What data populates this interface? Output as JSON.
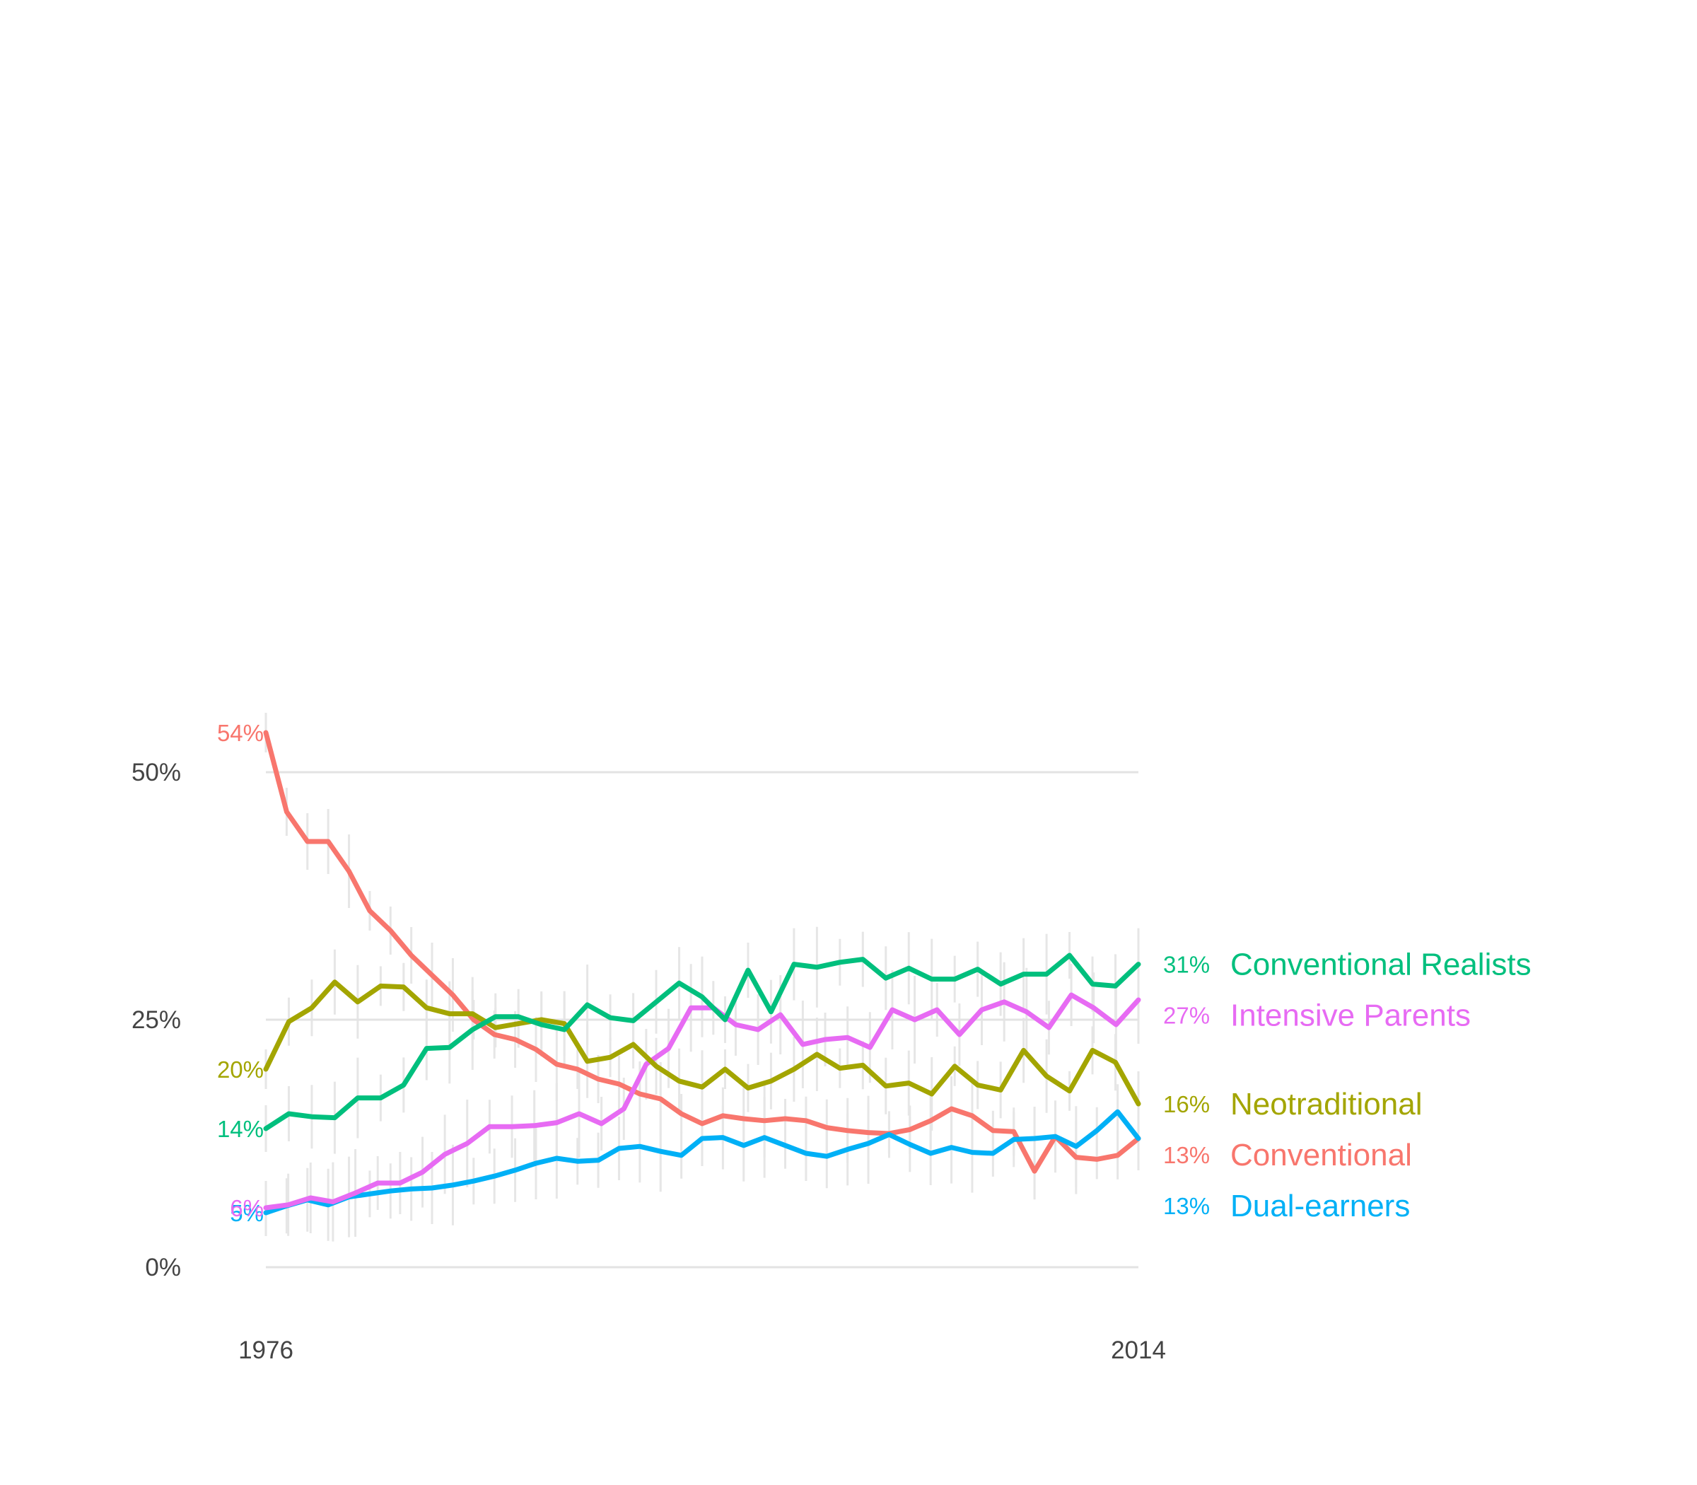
{
  "chart_data": {
    "type": "line",
    "x_range": [
      1976,
      2014
    ],
    "ylim": [
      0,
      0.57
    ],
    "y_ticks": [
      {
        "value": 0,
        "label": "0%"
      },
      {
        "value": 0.25,
        "label": "25%"
      },
      {
        "value": 0.5,
        "label": "50%"
      }
    ],
    "x_tick_labels": [
      "1976",
      "2014"
    ],
    "grid": "horizontal major lines at 0%, 25%, 50%",
    "error_bars": "light gray vertical uncertainty bars at each year",
    "series": [
      {
        "name": "Conventional",
        "color": "#F8766D",
        "start_label": "54%",
        "end_label": "13%",
        "values": [
          0.54,
          0.46,
          0.43,
          0.43,
          0.4,
          0.36,
          0.34,
          0.315,
          0.295,
          0.275,
          0.25,
          0.235,
          0.23,
          0.22,
          0.205,
          0.2,
          0.19,
          0.185,
          0.175,
          0.17,
          0.155,
          0.145,
          0.153,
          0.15,
          0.148,
          0.15,
          0.148,
          0.141,
          0.138,
          0.136,
          0.135,
          0.139,
          0.148,
          0.16,
          0.153,
          0.138,
          0.137,
          0.097,
          0.132,
          0.111,
          0.109,
          0.113,
          0.13
        ]
      },
      {
        "name": "Dual-earners",
        "color": "#00B0F6",
        "start_label": "5%",
        "end_label": "13%",
        "values": [
          0.055,
          0.062,
          0.068,
          0.063,
          0.071,
          0.074,
          0.077,
          0.079,
          0.08,
          0.083,
          0.087,
          0.092,
          0.098,
          0.105,
          0.11,
          0.107,
          0.108,
          0.12,
          0.122,
          0.117,
          0.113,
          0.13,
          0.131,
          0.123,
          0.131,
          0.123,
          0.115,
          0.112,
          0.119,
          0.125,
          0.134,
          0.124,
          0.115,
          0.121,
          0.116,
          0.115,
          0.129,
          0.13,
          0.132,
          0.122,
          0.138,
          0.157,
          0.13
        ]
      },
      {
        "name": "Intensive Parents",
        "color": "#E76BF3",
        "start_label": "6%",
        "end_label": "27%",
        "values": [
          0.06,
          0.063,
          0.07,
          0.066,
          0.075,
          0.085,
          0.085,
          0.096,
          0.114,
          0.125,
          0.142,
          0.142,
          0.143,
          0.146,
          0.155,
          0.145,
          0.16,
          0.205,
          0.221,
          0.262,
          0.262,
          0.245,
          0.24,
          0.255,
          0.225,
          0.23,
          0.232,
          0.222,
          0.26,
          0.25,
          0.26,
          0.235,
          0.26,
          0.268,
          0.258,
          0.242,
          0.275,
          0.262,
          0.245,
          0.27
        ]
      },
      {
        "name": "Neotraditional",
        "color": "#A3A500",
        "start_label": "20%",
        "end_label": "16%",
        "values": [
          0.2,
          0.248,
          0.262,
          0.288,
          0.268,
          0.284,
          0.283,
          0.262,
          0.256,
          0.256,
          0.242,
          0.246,
          0.25,
          0.246,
          0.208,
          0.212,
          0.225,
          0.203,
          0.188,
          0.182,
          0.2,
          0.181,
          0.188,
          0.2,
          0.215,
          0.201,
          0.204,
          0.183,
          0.186,
          0.175,
          0.203,
          0.184,
          0.179,
          0.219,
          0.193,
          0.178,
          0.219,
          0.207,
          0.165
        ]
      },
      {
        "name": "Conventional Realists",
        "color": "#00BF7D",
        "start_label": "14%",
        "end_label": "31%",
        "values": [
          0.14,
          0.155,
          0.152,
          0.151,
          0.171,
          0.171,
          0.184,
          0.221,
          0.222,
          0.24,
          0.253,
          0.253,
          0.245,
          0.24,
          0.265,
          0.252,
          0.249,
          0.268,
          0.287,
          0.273,
          0.25,
          0.3,
          0.258,
          0.306,
          0.303,
          0.308,
          0.311,
          0.292,
          0.302,
          0.291,
          0.291,
          0.301,
          0.286,
          0.296,
          0.296,
          0.315,
          0.286,
          0.284,
          0.306
        ]
      }
    ]
  }
}
